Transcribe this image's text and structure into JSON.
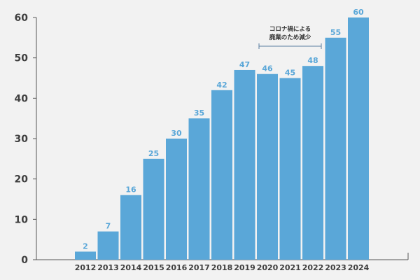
{
  "chart_data": {
    "type": "bar",
    "categories": [
      "2012",
      "2013",
      "2014",
      "2015",
      "2016",
      "2017",
      "2018",
      "2019",
      "2020",
      "2021",
      "2022",
      "2023",
      "2024"
    ],
    "values": [
      2,
      7,
      16,
      25,
      30,
      35,
      42,
      47,
      46,
      45,
      48,
      55,
      60
    ],
    "ylim": [
      0,
      60
    ],
    "yticks": [
      0,
      10,
      20,
      30,
      40,
      50,
      60
    ],
    "grid": false,
    "bar_color": "#5aa7d8",
    "label_color": "#5aa7d8",
    "axis_color": "#555555",
    "annotation": {
      "lines": [
        "コロナ禍による",
        "廃業のため減少"
      ],
      "span": [
        "2020",
        "2022"
      ]
    }
  }
}
